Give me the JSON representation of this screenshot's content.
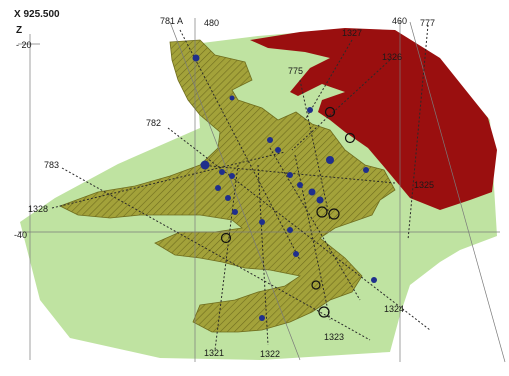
{
  "header": {
    "x_coordinate": "X 925.500",
    "z_axis_label": "Z"
  },
  "z_ticks": [
    "- 20",
    "-40"
  ],
  "grid_labels": [
    "480",
    "460"
  ],
  "drillholes": [
    "781 A",
    "777",
    "1327",
    "1326",
    "775",
    "782",
    "783",
    "1328",
    "1325",
    "1324",
    "1323",
    "1322",
    "1321"
  ],
  "colors": {
    "background": "#ffffff",
    "host_unit": "#bfe3a1",
    "mineralized_unit": "#a3a23a",
    "hatch": "#6f6d1e",
    "massive_unit": "#9a0f0f",
    "drill_trace": "#2a2a2a",
    "sample_marker": "#1f2f8c"
  }
}
